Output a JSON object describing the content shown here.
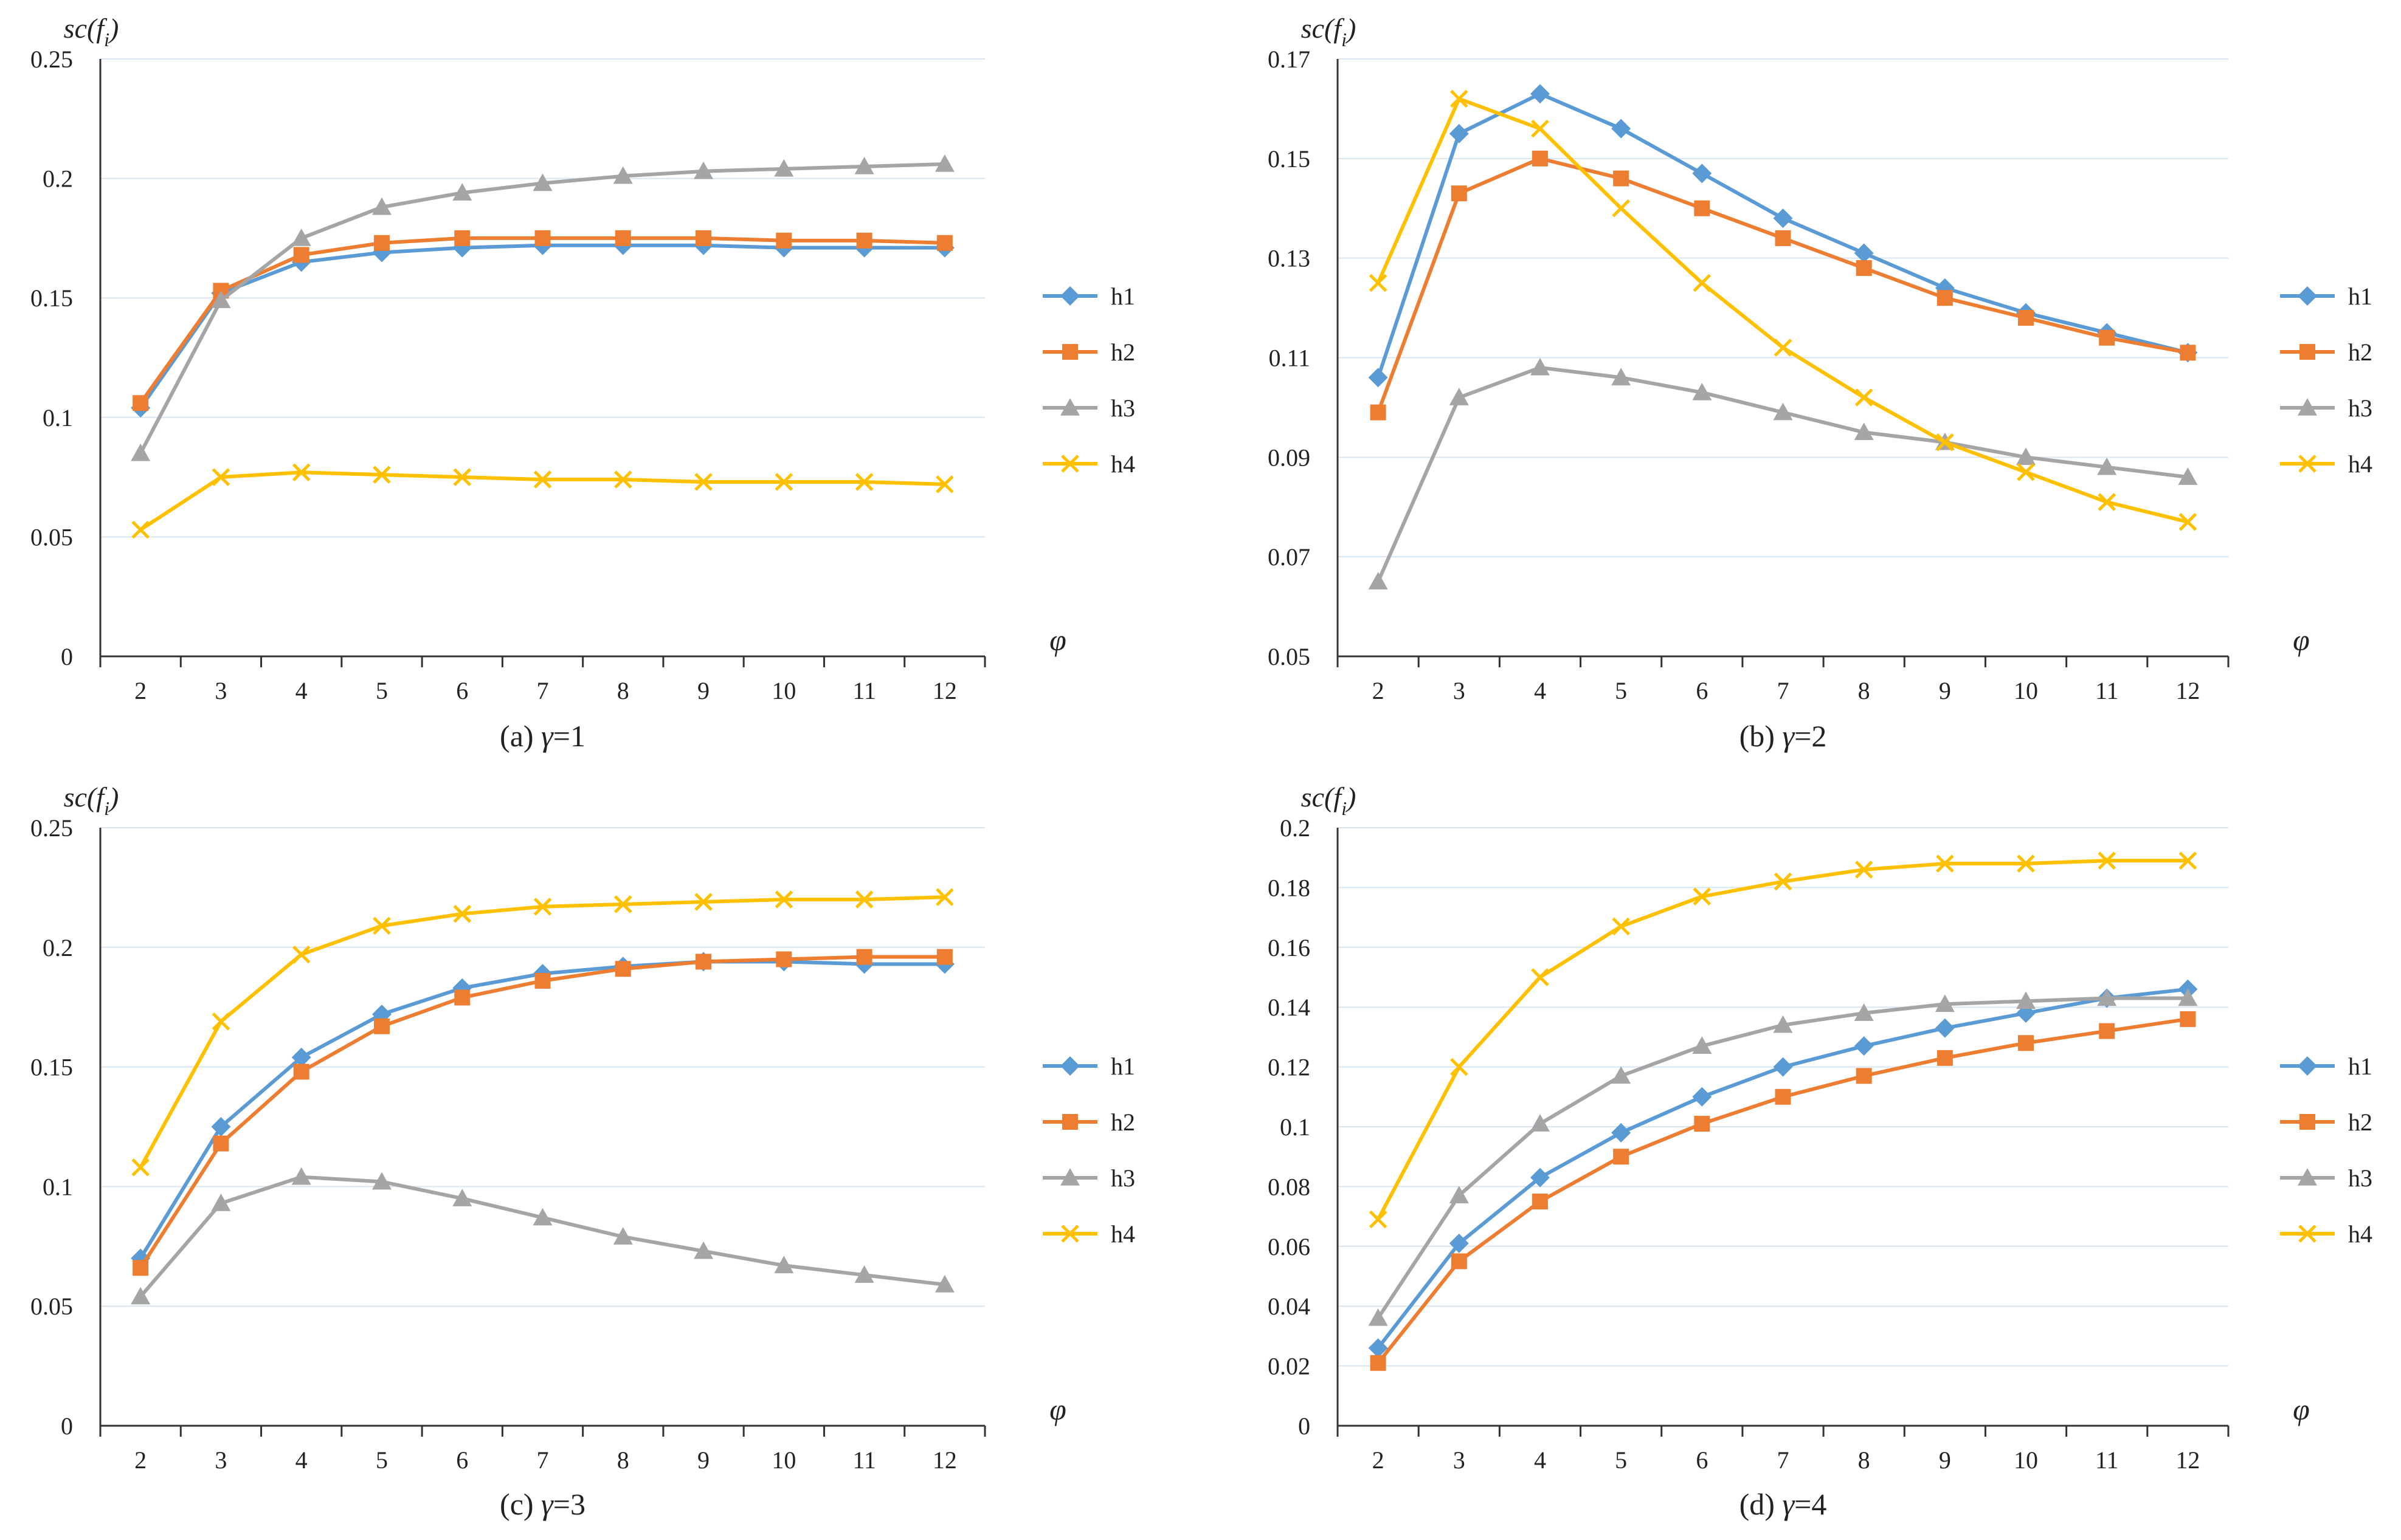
{
  "x_categories": [
    2,
    3,
    4,
    5,
    6,
    7,
    8,
    9,
    10,
    11,
    12
  ],
  "y_axis_label": "sc(fi)",
  "y_axis_label_base": "sc(f",
  "y_axis_label_sub": "i",
  "y_axis_label_end": ")",
  "x_axis_label": "φ",
  "series_style": [
    {
      "name": "h1",
      "color": "#5B9BD5",
      "marker": "diamond"
    },
    {
      "name": "h2",
      "color": "#ED7D31",
      "marker": "square"
    },
    {
      "name": "h3",
      "color": "#A5A5A5",
      "marker": "triangle"
    },
    {
      "name": "h4",
      "color": "#FFC000",
      "marker": "x"
    }
  ],
  "chart_data": [
    {
      "type": "line",
      "title": "(a) γ=1",
      "caption_prefix": "(a) ",
      "caption_symbol": "γ",
      "caption_suffix": "=1",
      "xlabel": "φ",
      "ylabel": "sc(fi)",
      "ylim": [
        0,
        0.25
      ],
      "y_ticks": [
        "0",
        "0.05",
        "0.1",
        "0.15",
        "0.2",
        "0.25"
      ],
      "categories": [
        2,
        3,
        4,
        5,
        6,
        7,
        8,
        9,
        10,
        11,
        12
      ],
      "legend": "right",
      "series": [
        {
          "name": "h1",
          "values": [
            0.104,
            0.152,
            0.165,
            0.169,
            0.171,
            0.172,
            0.172,
            0.172,
            0.171,
            0.171,
            0.171
          ]
        },
        {
          "name": "h2",
          "values": [
            0.106,
            0.153,
            0.168,
            0.173,
            0.175,
            0.175,
            0.175,
            0.175,
            0.174,
            0.174,
            0.173
          ]
        },
        {
          "name": "h3",
          "values": [
            0.085,
            0.149,
            0.175,
            0.188,
            0.194,
            0.198,
            0.201,
            0.203,
            0.204,
            0.205,
            0.206
          ]
        },
        {
          "name": "h4",
          "values": [
            0.053,
            0.075,
            0.077,
            0.076,
            0.075,
            0.074,
            0.074,
            0.073,
            0.073,
            0.073,
            0.072
          ]
        }
      ]
    },
    {
      "type": "line",
      "title": "(b) γ=2",
      "caption_prefix": "(b) ",
      "caption_symbol": "γ",
      "caption_suffix": "=2",
      "xlabel": "φ",
      "ylabel": "sc(fi)",
      "ylim": [
        0.05,
        0.17
      ],
      "y_ticks": [
        "0.05",
        "0.07",
        "0.09",
        "0.11",
        "0.13",
        "0.15",
        "0.17"
      ],
      "categories": [
        2,
        3,
        4,
        5,
        6,
        7,
        8,
        9,
        10,
        11,
        12
      ],
      "legend": "right",
      "series": [
        {
          "name": "h1",
          "values": [
            0.106,
            0.155,
            0.163,
            0.156,
            0.147,
            0.138,
            0.131,
            0.124,
            0.119,
            0.115,
            0.111
          ]
        },
        {
          "name": "h2",
          "values": [
            0.099,
            0.143,
            0.15,
            0.146,
            0.14,
            0.134,
            0.128,
            0.122,
            0.118,
            0.114,
            0.111
          ]
        },
        {
          "name": "h3",
          "values": [
            0.065,
            0.102,
            0.108,
            0.106,
            0.103,
            0.099,
            0.095,
            0.093,
            0.09,
            0.088,
            0.086
          ]
        },
        {
          "name": "h4",
          "values": [
            0.125,
            0.162,
            0.156,
            0.14,
            0.125,
            0.112,
            0.102,
            0.093,
            0.087,
            0.081,
            0.077
          ]
        }
      ]
    },
    {
      "type": "line",
      "title": "(c) γ=3",
      "caption_prefix": "(c) ",
      "caption_symbol": "γ",
      "caption_suffix": "=3",
      "xlabel": "φ",
      "ylabel": "sc(fi)",
      "ylim": [
        0,
        0.25
      ],
      "y_ticks": [
        "0",
        "0.05",
        "0.1",
        "0.15",
        "0.2",
        "0.25"
      ],
      "categories": [
        2,
        3,
        4,
        5,
        6,
        7,
        8,
        9,
        10,
        11,
        12
      ],
      "legend": "right",
      "series": [
        {
          "name": "h1",
          "values": [
            0.07,
            0.125,
            0.154,
            0.172,
            0.183,
            0.189,
            0.192,
            0.194,
            0.194,
            0.193,
            0.193
          ]
        },
        {
          "name": "h2",
          "values": [
            0.066,
            0.118,
            0.148,
            0.167,
            0.179,
            0.186,
            0.191,
            0.194,
            0.195,
            0.196,
            0.196
          ]
        },
        {
          "name": "h3",
          "values": [
            0.054,
            0.093,
            0.104,
            0.102,
            0.095,
            0.087,
            0.079,
            0.073,
            0.067,
            0.063,
            0.059
          ]
        },
        {
          "name": "h4",
          "values": [
            0.108,
            0.169,
            0.197,
            0.209,
            0.214,
            0.217,
            0.218,
            0.219,
            0.22,
            0.22,
            0.221
          ]
        }
      ]
    },
    {
      "type": "line",
      "title": "(d) γ=4",
      "caption_prefix": "(d) ",
      "caption_symbol": "γ",
      "caption_suffix": "=4",
      "xlabel": "φ",
      "ylabel": "sc(fi)",
      "ylim": [
        0,
        0.2
      ],
      "y_ticks": [
        "0",
        "0.02",
        "0.04",
        "0.06",
        "0.08",
        "0.1",
        "0.12",
        "0.14",
        "0.16",
        "0.18",
        "0.2"
      ],
      "categories": [
        2,
        3,
        4,
        5,
        6,
        7,
        8,
        9,
        10,
        11,
        12
      ],
      "legend": "right",
      "series": [
        {
          "name": "h1",
          "values": [
            0.026,
            0.061,
            0.083,
            0.098,
            0.11,
            0.12,
            0.127,
            0.133,
            0.138,
            0.143,
            0.146
          ]
        },
        {
          "name": "h2",
          "values": [
            0.021,
            0.055,
            0.075,
            0.09,
            0.101,
            0.11,
            0.117,
            0.123,
            0.128,
            0.132,
            0.136
          ]
        },
        {
          "name": "h3",
          "values": [
            0.036,
            0.077,
            0.101,
            0.117,
            0.127,
            0.134,
            0.138,
            0.141,
            0.142,
            0.143,
            0.143
          ]
        },
        {
          "name": "h4",
          "values": [
            0.069,
            0.12,
            0.15,
            0.167,
            0.177,
            0.182,
            0.186,
            0.188,
            0.188,
            0.189,
            0.189
          ]
        }
      ]
    }
  ]
}
